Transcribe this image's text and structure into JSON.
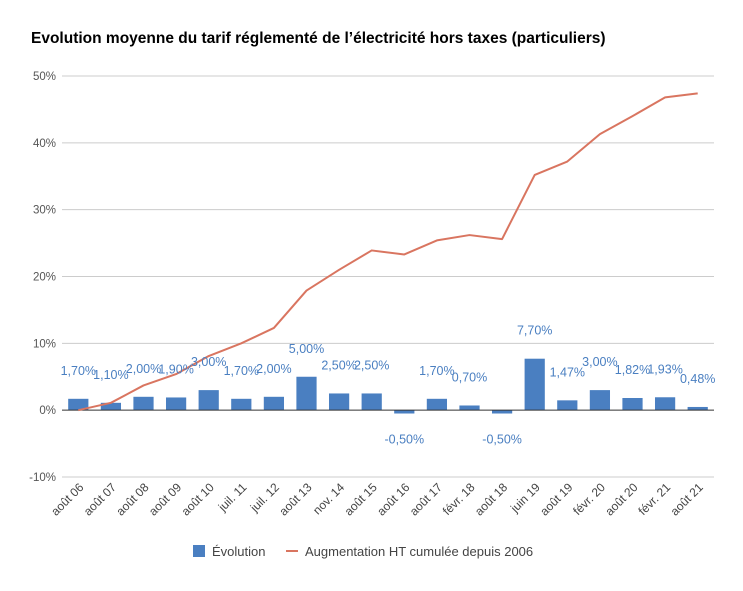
{
  "chart_data": {
    "type": "bar",
    "title": "Evolution moyenne du tarif réglementé de l’électricité hors taxes (particuliers)",
    "categories": [
      "août 06",
      "août 07",
      "août 08",
      "août 09",
      "août 10",
      "juil. 11",
      "juil. 12",
      "août 13",
      "nov. 14",
      "août 15",
      "août 16",
      "août 17",
      "févr. 18",
      "août 18",
      "juin 19",
      "août 19",
      "févr. 20",
      "août 20",
      "févr. 21",
      "août 21"
    ],
    "series": [
      {
        "name": "Évolution",
        "type": "bar",
        "color": "#4a7fc1",
        "values": [
          1.7,
          1.1,
          2.0,
          1.9,
          3.0,
          1.7,
          2.0,
          5.0,
          2.5,
          2.5,
          -0.5,
          1.7,
          0.7,
          -0.5,
          7.7,
          1.47,
          3.0,
          1.82,
          1.93,
          0.48
        ],
        "labels": [
          "1,70%",
          "1,10%",
          "2,00%",
          "1,90%",
          "3,00%",
          "1,70%",
          "2,00%",
          "5,00%",
          "2,50%",
          "2,50%",
          "-0,50%",
          "1,70%",
          "0,70%",
          "-0,50%",
          "7,70%",
          "1,47%",
          "3,00%",
          "1,82%",
          "1,93%",
          "0,48%"
        ]
      },
      {
        "name": "Augmentation HT cumulée depuis 2006",
        "type": "line",
        "color": "#d97560",
        "values": [
          0.0,
          1.1,
          3.7,
          5.4,
          8.1,
          10.0,
          12.3,
          17.9,
          21.0,
          23.9,
          23.3,
          25.4,
          26.2,
          25.6,
          35.2,
          37.2,
          41.3,
          44.0,
          46.8,
          47.4
        ]
      }
    ],
    "ylim": [
      -10,
      50
    ],
    "yticks": [
      "50%",
      "40%",
      "30%",
      "20%",
      "10%",
      "0%",
      "-10%"
    ],
    "ytick_values": [
      50,
      40,
      30,
      20,
      10,
      0,
      -10
    ],
    "xlabel": "",
    "ylabel": "",
    "grid": true,
    "legend_position": "bottom"
  }
}
